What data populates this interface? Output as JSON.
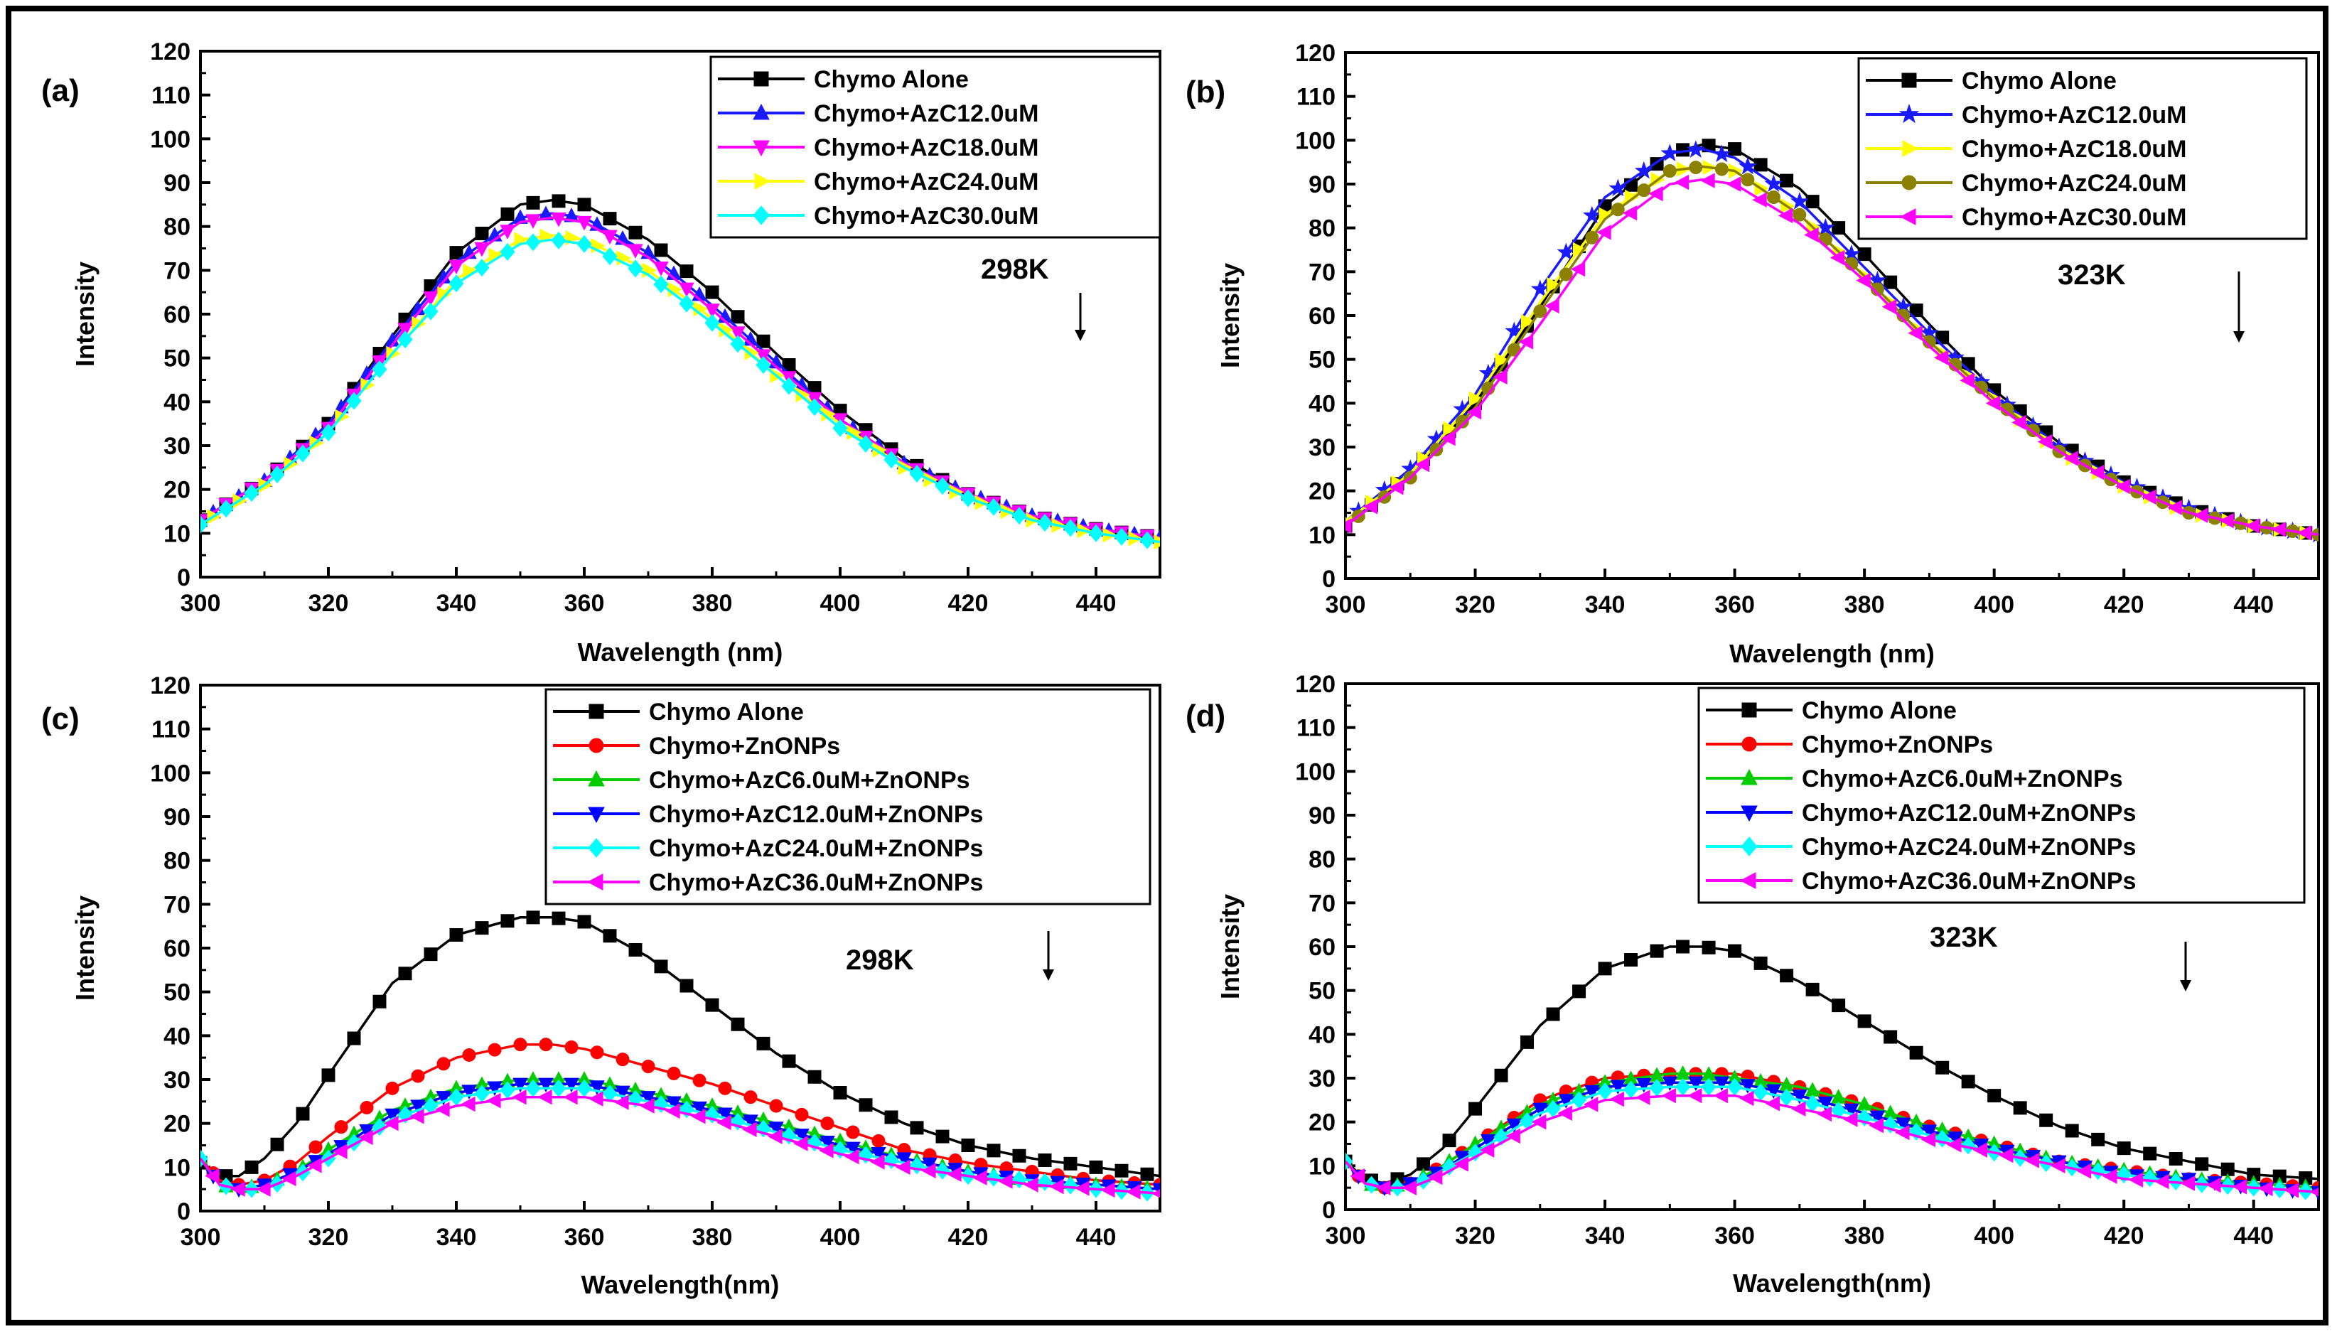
{
  "chart_data": [
    {
      "type": "line",
      "panel_label": "(a)",
      "annotation": "298K",
      "xlabel": "Wavelength (nm)",
      "ylabel": "Intensity",
      "xlim": [
        300,
        450
      ],
      "ylim": [
        0,
        120
      ],
      "x_ticks": [
        "300",
        "320",
        "340",
        "360",
        "380",
        "400",
        "420",
        "440"
      ],
      "y_ticks": [
        "0",
        "10",
        "20",
        "30",
        "40",
        "50",
        "60",
        "70",
        "80",
        "90",
        "100",
        "110",
        "120"
      ],
      "legend_position": "top-right",
      "x": [
        300,
        310,
        320,
        330,
        340,
        350,
        355,
        360,
        370,
        380,
        390,
        400,
        410,
        420,
        430,
        440,
        450
      ],
      "series": [
        {
          "name": "Chymo Alone",
          "color": "#000000",
          "marker": "square",
          "values": [
            13,
            22,
            35,
            55,
            74,
            85,
            86,
            85,
            77,
            65,
            51,
            38,
            27,
            19,
            14,
            11,
            9
          ]
        },
        {
          "name": "Chymo+AzC12.0uM",
          "color": "#1a1aff",
          "marker": "triangle-up",
          "values": [
            13,
            22,
            35,
            54,
            72,
            82,
            83,
            82,
            74,
            62,
            49,
            36,
            26,
            19,
            14,
            11,
            9
          ]
        },
        {
          "name": "Chymo+AzC18.0uM",
          "color": "#ff00ff",
          "marker": "triangle-down",
          "values": [
            13,
            22,
            34,
            53,
            71,
            81,
            82,
            81,
            73,
            61,
            48,
            36,
            26,
            19,
            14,
            11,
            9
          ]
        },
        {
          "name": "Chymo+AzC24.0uM",
          "color": "#ffff00",
          "marker": "triangle-right",
          "values": [
            12,
            21,
            33,
            51,
            68,
            77,
            78,
            77,
            70,
            59,
            46,
            35,
            25,
            18,
            13,
            10,
            8
          ]
        },
        {
          "name": "Chymo+AzC30.0uM",
          "color": "#00ffff",
          "marker": "diamond",
          "values": [
            12,
            21,
            33,
            51,
            67,
            76,
            77,
            76,
            69,
            58,
            46,
            34,
            25,
            18,
            13,
            10,
            8
          ]
        }
      ]
    },
    {
      "type": "line",
      "panel_label": "(b)",
      "annotation": "323K",
      "xlabel": "Wavelength (nm)",
      "ylabel": "Intensity",
      "xlim": [
        300,
        450
      ],
      "ylim": [
        0,
        120
      ],
      "x_ticks": [
        "300",
        "320",
        "340",
        "360",
        "380",
        "400",
        "420",
        "440"
      ],
      "y_ticks": [
        "0",
        "10",
        "20",
        "30",
        "40",
        "50",
        "60",
        "70",
        "80",
        "90",
        "100",
        "110",
        "120"
      ],
      "legend_position": "top-right",
      "x": [
        300,
        310,
        320,
        330,
        340,
        350,
        355,
        360,
        370,
        380,
        390,
        400,
        410,
        420,
        430,
        440,
        450
      ],
      "series": [
        {
          "name": "Chymo Alone",
          "color": "#000000",
          "marker": "square",
          "values": [
            12,
            24,
            40,
            62,
            85,
            97,
            99,
            98,
            89,
            74,
            58,
            43,
            31,
            22,
            16,
            12,
            10
          ]
        },
        {
          "name": "Chymo+AzC12.0uM",
          "color": "#1a1aff",
          "marker": "star",
          "values": [
            13,
            25,
            42,
            66,
            87,
            97,
            98,
            96,
            86,
            71,
            56,
            42,
            30,
            22,
            16,
            12,
            10
          ]
        },
        {
          "name": "Chymo+AzC18.0uM",
          "color": "#ffff00",
          "marker": "triangle-right",
          "values": [
            13,
            24,
            41,
            63,
            83,
            93,
            94,
            93,
            83,
            69,
            54,
            41,
            29,
            21,
            15,
            12,
            10
          ]
        },
        {
          "name": "Chymo+AzC24.0uM",
          "color": "#8b8000",
          "marker": "circle",
          "values": [
            12,
            23,
            39,
            61,
            82,
            93,
            94,
            93,
            83,
            69,
            54,
            41,
            29,
            21,
            15,
            12,
            10
          ]
        },
        {
          "name": "Chymo+AzC30.0uM",
          "color": "#ff00ff",
          "marker": "triangle-left",
          "values": [
            12,
            23,
            38,
            58,
            79,
            90,
            91,
            90,
            81,
            68,
            53,
            40,
            29,
            21,
            15,
            12,
            10
          ]
        }
      ]
    },
    {
      "type": "line",
      "panel_label": "(c)",
      "annotation": "298K",
      "xlabel": "Wavelength(nm)",
      "ylabel": "Intensity",
      "xlim": [
        300,
        450
      ],
      "ylim": [
        0,
        120
      ],
      "x_ticks": [
        "300",
        "320",
        "340",
        "360",
        "380",
        "400",
        "420",
        "440"
      ],
      "y_ticks": [
        "0",
        "10",
        "20",
        "30",
        "40",
        "50",
        "60",
        "70",
        "80",
        "90",
        "100",
        "110",
        "120"
      ],
      "legend_position": "top-right",
      "x": [
        300,
        303,
        306,
        310,
        315,
        320,
        330,
        340,
        350,
        355,
        360,
        370,
        380,
        390,
        400,
        410,
        420,
        430,
        440,
        450
      ],
      "series": [
        {
          "name": "Chymo Alone",
          "color": "#000000",
          "marker": "square",
          "values": [
            11,
            8,
            8,
            12,
            20,
            31,
            52,
            63,
            67,
            67,
            66,
            58,
            47,
            36,
            27,
            20,
            15,
            12,
            10,
            8
          ]
        },
        {
          "name": "Chymo+ZnONPs",
          "color": "#ff0000",
          "marker": "circle",
          "values": [
            12,
            7,
            6,
            7,
            11,
            17,
            28,
            35,
            38,
            38,
            37,
            33,
            29,
            24,
            19,
            14,
            11,
            9,
            7,
            6
          ]
        },
        {
          "name": "Chymo+AzC6.0uM+ZnONPs",
          "color": "#00cc00",
          "marker": "triangle-up",
          "values": [
            12,
            6,
            5,
            6,
            9,
            14,
            23,
            28,
            30,
            30,
            30,
            27,
            24,
            20,
            16,
            12,
            9,
            7,
            6,
            5
          ]
        },
        {
          "name": "Chymo+AzC12.0uM+ZnONPs",
          "color": "#0000ff",
          "marker": "triangle-down",
          "values": [
            12,
            6,
            5,
            6,
            9,
            13,
            22,
            27,
            29,
            29,
            29,
            26,
            23,
            19,
            15,
            12,
            9,
            7,
            6,
            5
          ]
        },
        {
          "name": "Chymo+AzC24.0uM+ZnONPs",
          "color": "#00ffff",
          "marker": "diamond",
          "values": [
            12,
            6,
            5,
            5,
            8,
            12,
            21,
            26,
            28,
            28,
            28,
            25,
            22,
            18,
            14,
            11,
            8,
            7,
            5,
            4
          ]
        },
        {
          "name": "Chymo+AzC36.0uM+ZnONPs",
          "color": "#ff00ff",
          "marker": "triangle-left",
          "values": [
            12,
            6,
            5,
            5,
            8,
            12,
            20,
            24,
            26,
            26,
            26,
            24,
            21,
            17,
            13,
            10,
            8,
            6,
            5,
            4
          ]
        }
      ]
    },
    {
      "type": "line",
      "panel_label": "(d)",
      "annotation": "323K",
      "xlabel": "Wavelength(nm)",
      "ylabel": "Intensity",
      "xlim": [
        300,
        450
      ],
      "ylim": [
        0,
        120
      ],
      "x_ticks": [
        "300",
        "320",
        "340",
        "360",
        "380",
        "400",
        "420",
        "440"
      ],
      "y_ticks": [
        "0",
        "10",
        "20",
        "30",
        "40",
        "50",
        "60",
        "70",
        "80",
        "90",
        "100",
        "110",
        "120"
      ],
      "legend_position": "top-right",
      "x": [
        300,
        303,
        306,
        310,
        315,
        320,
        330,
        340,
        350,
        355,
        360,
        370,
        380,
        390,
        400,
        410,
        420,
        430,
        440,
        450
      ],
      "series": [
        {
          "name": "Chymo Alone",
          "color": "#000000",
          "marker": "square",
          "values": [
            11,
            7,
            6,
            8,
            14,
            23,
            42,
            55,
            60,
            60,
            59,
            52,
            43,
            34,
            26,
            19,
            14,
            11,
            8,
            7
          ]
        },
        {
          "name": "Chymo+ZnONPs",
          "color": "#ff0000",
          "marker": "circle",
          "values": [
            11,
            6,
            5,
            6,
            10,
            15,
            25,
            30,
            31,
            31,
            31,
            28,
            24,
            19,
            15,
            11,
            9,
            7,
            6,
            5
          ]
        },
        {
          "name": "Chymo+AzC6.0uM+ZnONPs",
          "color": "#00cc00",
          "marker": "triangle-up",
          "values": [
            11,
            6,
            5,
            6,
            10,
            15,
            24,
            29,
            31,
            31,
            30,
            28,
            24,
            19,
            15,
            11,
            9,
            7,
            6,
            5
          ]
        },
        {
          "name": "Chymo+AzC12.0uM+ZnONPs",
          "color": "#0000ff",
          "marker": "triangle-down",
          "values": [
            11,
            6,
            5,
            6,
            9,
            14,
            23,
            28,
            29,
            29,
            29,
            26,
            22,
            18,
            14,
            11,
            8,
            7,
            5,
            4
          ]
        },
        {
          "name": "Chymo+AzC24.0uM+ZnONPs",
          "color": "#00ffff",
          "marker": "diamond",
          "values": [
            11,
            6,
            5,
            5,
            9,
            13,
            22,
            27,
            28,
            28,
            28,
            25,
            21,
            17,
            13,
            10,
            8,
            6,
            5,
            4
          ]
        },
        {
          "name": "Chymo+AzC36.0uM+ZnONPs",
          "color": "#ff00ff",
          "marker": "triangle-left",
          "values": [
            11,
            6,
            5,
            5,
            8,
            12,
            20,
            25,
            26,
            26,
            26,
            23,
            20,
            16,
            13,
            10,
            7,
            6,
            5,
            4
          ]
        }
      ]
    }
  ]
}
